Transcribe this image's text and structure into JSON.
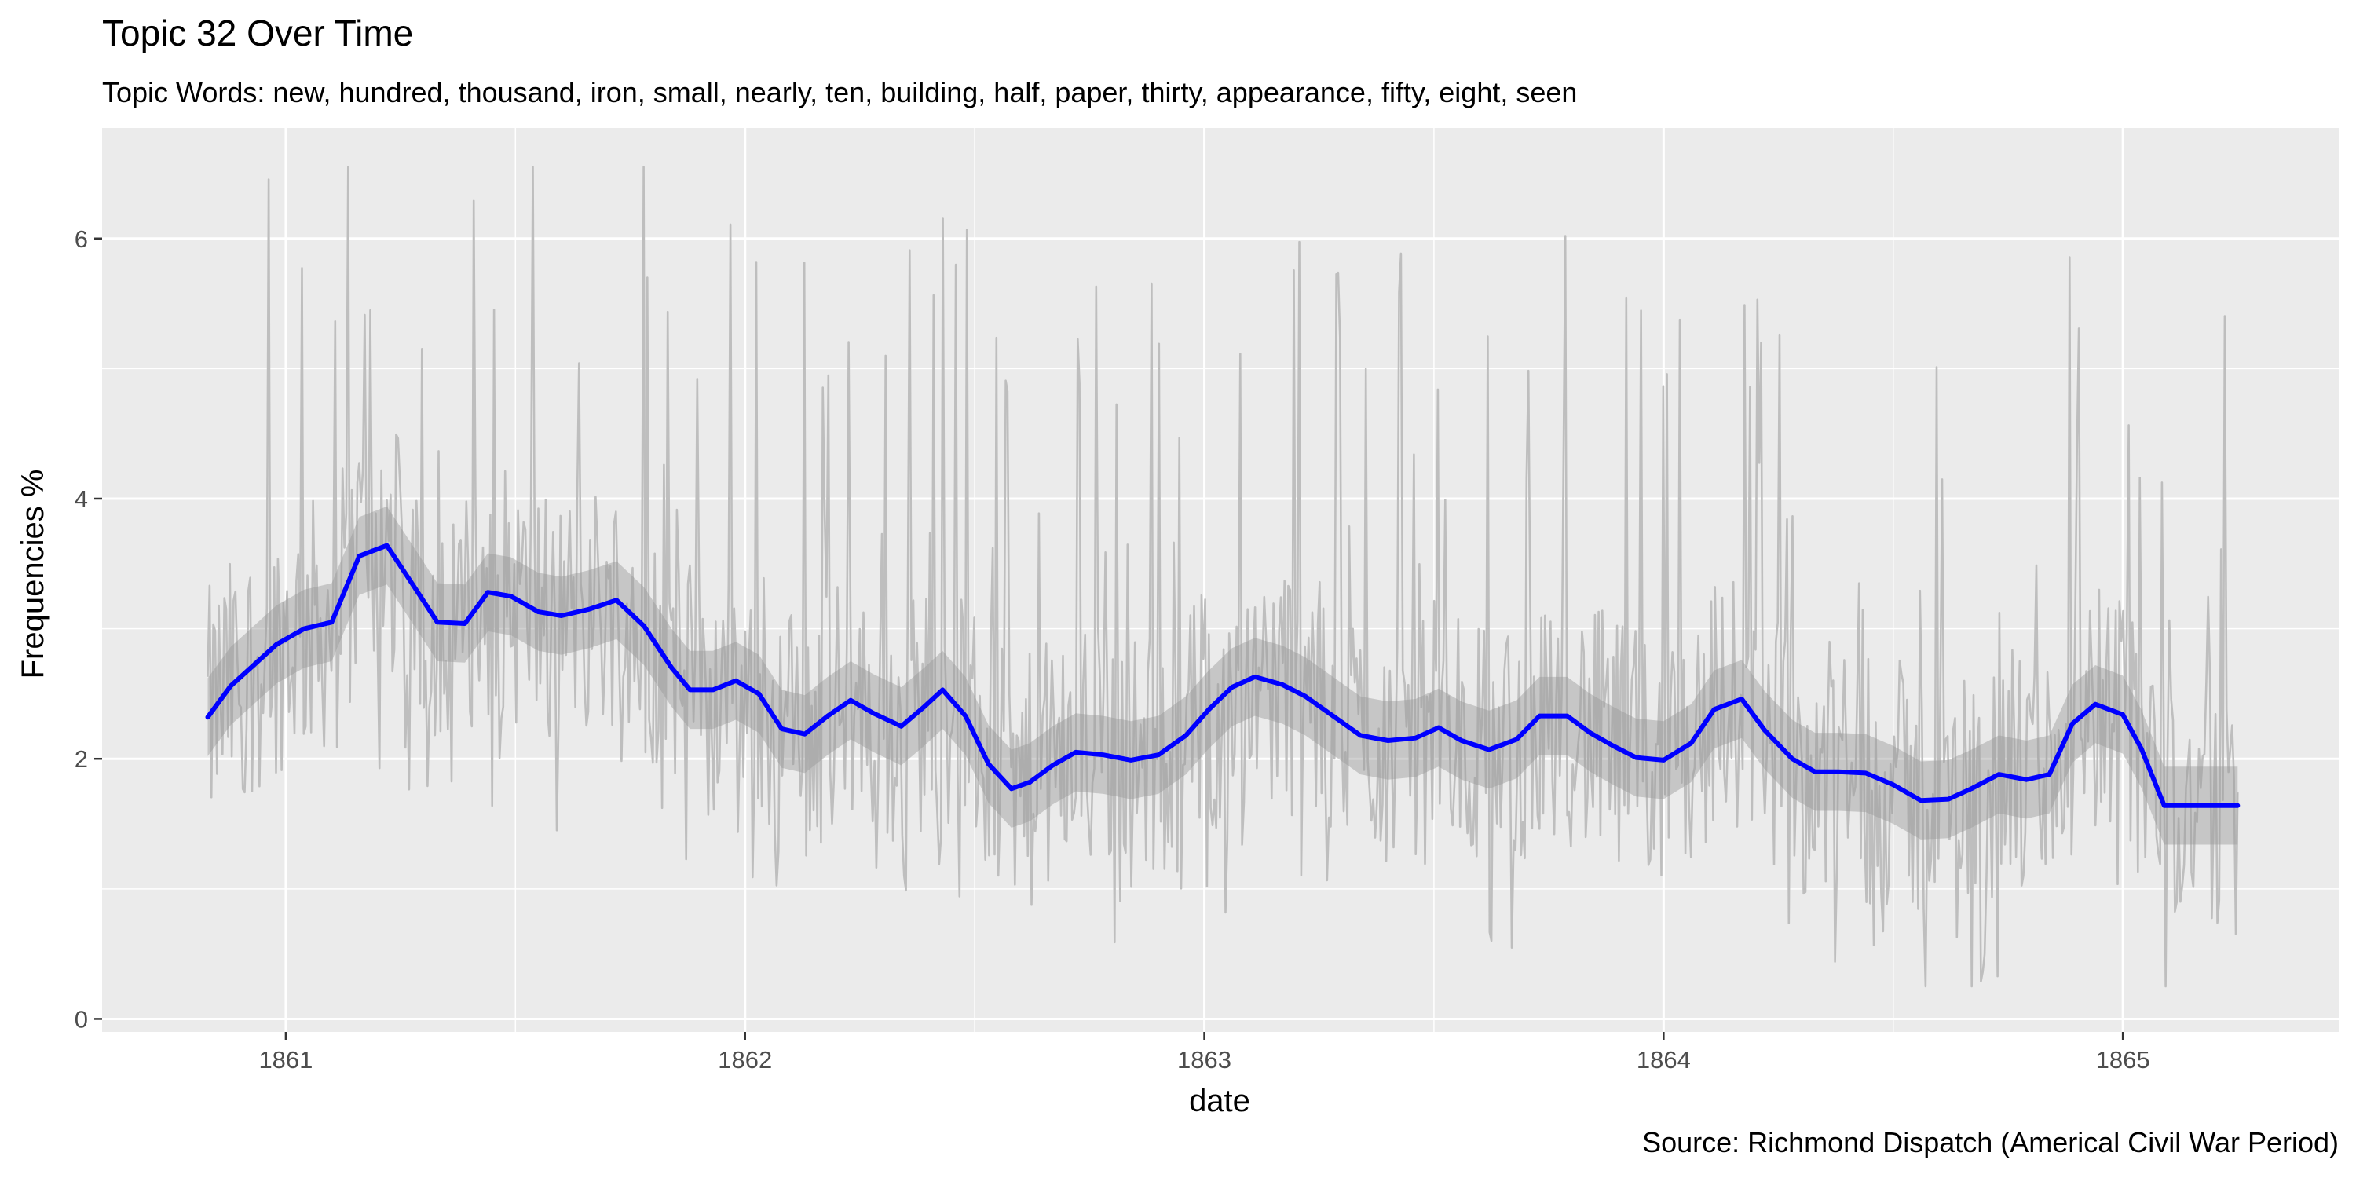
{
  "chart_data": {
    "type": "line",
    "title": "Topic 32 Over Time",
    "subtitle": "Topic Words: new, hundred, thousand, iron, small, nearly, ten, building, half, paper, thirty, appearance, fifty, eight, seen",
    "xlabel": "date",
    "ylabel": "Frequencies %",
    "caption": "Source: Richmond Dispatch (Americal Civil War Period)",
    "xlim": [
      1860.6,
      1865.47
    ],
    "ylim": [
      -0.1,
      6.85
    ],
    "x_ticks": [
      1861,
      1862,
      1863,
      1864,
      1865
    ],
    "x_tick_labels": [
      "1861",
      "1862",
      "1863",
      "1864",
      "1865"
    ],
    "y_ticks": [
      0,
      2,
      4,
      6
    ],
    "y_tick_labels": [
      "0",
      "2",
      "4",
      "6"
    ],
    "grid": true,
    "colors": {
      "panel": "#ebebeb",
      "grid": "#ffffff",
      "raw_series": "#bebebe",
      "smooth": "#0000ff",
      "ribbon": "#999999"
    },
    "series": [
      {
        "role": "raw",
        "style": "daily noisy values, range approx 0.25–6.55",
        "x_range": [
          1860.83,
          1865.25
        ],
        "y_min": 0.25,
        "y_max": 6.55
      },
      {
        "role": "smooth",
        "x": [
          1860.83,
          1860.88,
          1860.93,
          1860.98,
          1861.04,
          1861.1,
          1861.16,
          1861.22,
          1861.28,
          1861.33,
          1861.39,
          1861.44,
          1861.49,
          1861.55,
          1861.6,
          1861.66,
          1861.72,
          1861.78,
          1861.84,
          1861.88,
          1861.93,
          1861.98,
          1862.03,
          1862.08,
          1862.13,
          1862.18,
          1862.23,
          1862.28,
          1862.34,
          1862.39,
          1862.43,
          1862.48,
          1862.53,
          1862.58,
          1862.62,
          1862.67,
          1862.72,
          1862.78,
          1862.84,
          1862.9,
          1862.96,
          1863.01,
          1863.06,
          1863.11,
          1863.17,
          1863.22,
          1863.28,
          1863.34,
          1863.4,
          1863.46,
          1863.51,
          1863.56,
          1863.62,
          1863.68,
          1863.73,
          1863.79,
          1863.84,
          1863.89,
          1863.94,
          1864.0,
          1864.06,
          1864.11,
          1864.17,
          1864.22,
          1864.28,
          1864.33,
          1864.38,
          1864.44,
          1864.5,
          1864.56,
          1864.62,
          1864.67,
          1864.73,
          1864.79,
          1864.84,
          1864.89,
          1864.94,
          1865.0,
          1865.04,
          1865.09,
          1865.14,
          1865.19,
          1865.25
        ],
        "y": [
          2.32,
          2.56,
          2.72,
          2.88,
          3.0,
          3.05,
          3.56,
          3.64,
          3.32,
          3.05,
          3.04,
          3.28,
          3.25,
          3.13,
          3.1,
          3.15,
          3.22,
          3.02,
          2.7,
          2.53,
          2.53,
          2.6,
          2.5,
          2.23,
          2.19,
          2.33,
          2.45,
          2.35,
          2.25,
          2.4,
          2.53,
          2.33,
          1.96,
          1.77,
          1.82,
          1.95,
          2.05,
          2.03,
          1.99,
          2.03,
          2.18,
          2.38,
          2.55,
          2.63,
          2.57,
          2.48,
          2.33,
          2.18,
          2.14,
          2.16,
          2.24,
          2.14,
          2.07,
          2.15,
          2.33,
          2.33,
          2.2,
          2.1,
          2.01,
          1.99,
          2.12,
          2.38,
          2.46,
          2.22,
          2.0,
          1.9,
          1.9,
          1.89,
          1.8,
          1.68,
          1.69,
          1.77,
          1.88,
          1.84,
          1.88,
          2.27,
          2.42,
          2.34,
          2.08,
          1.64,
          1.64,
          1.64,
          1.64
        ],
        "ribbon_halfwidth": 0.3
      }
    ]
  }
}
